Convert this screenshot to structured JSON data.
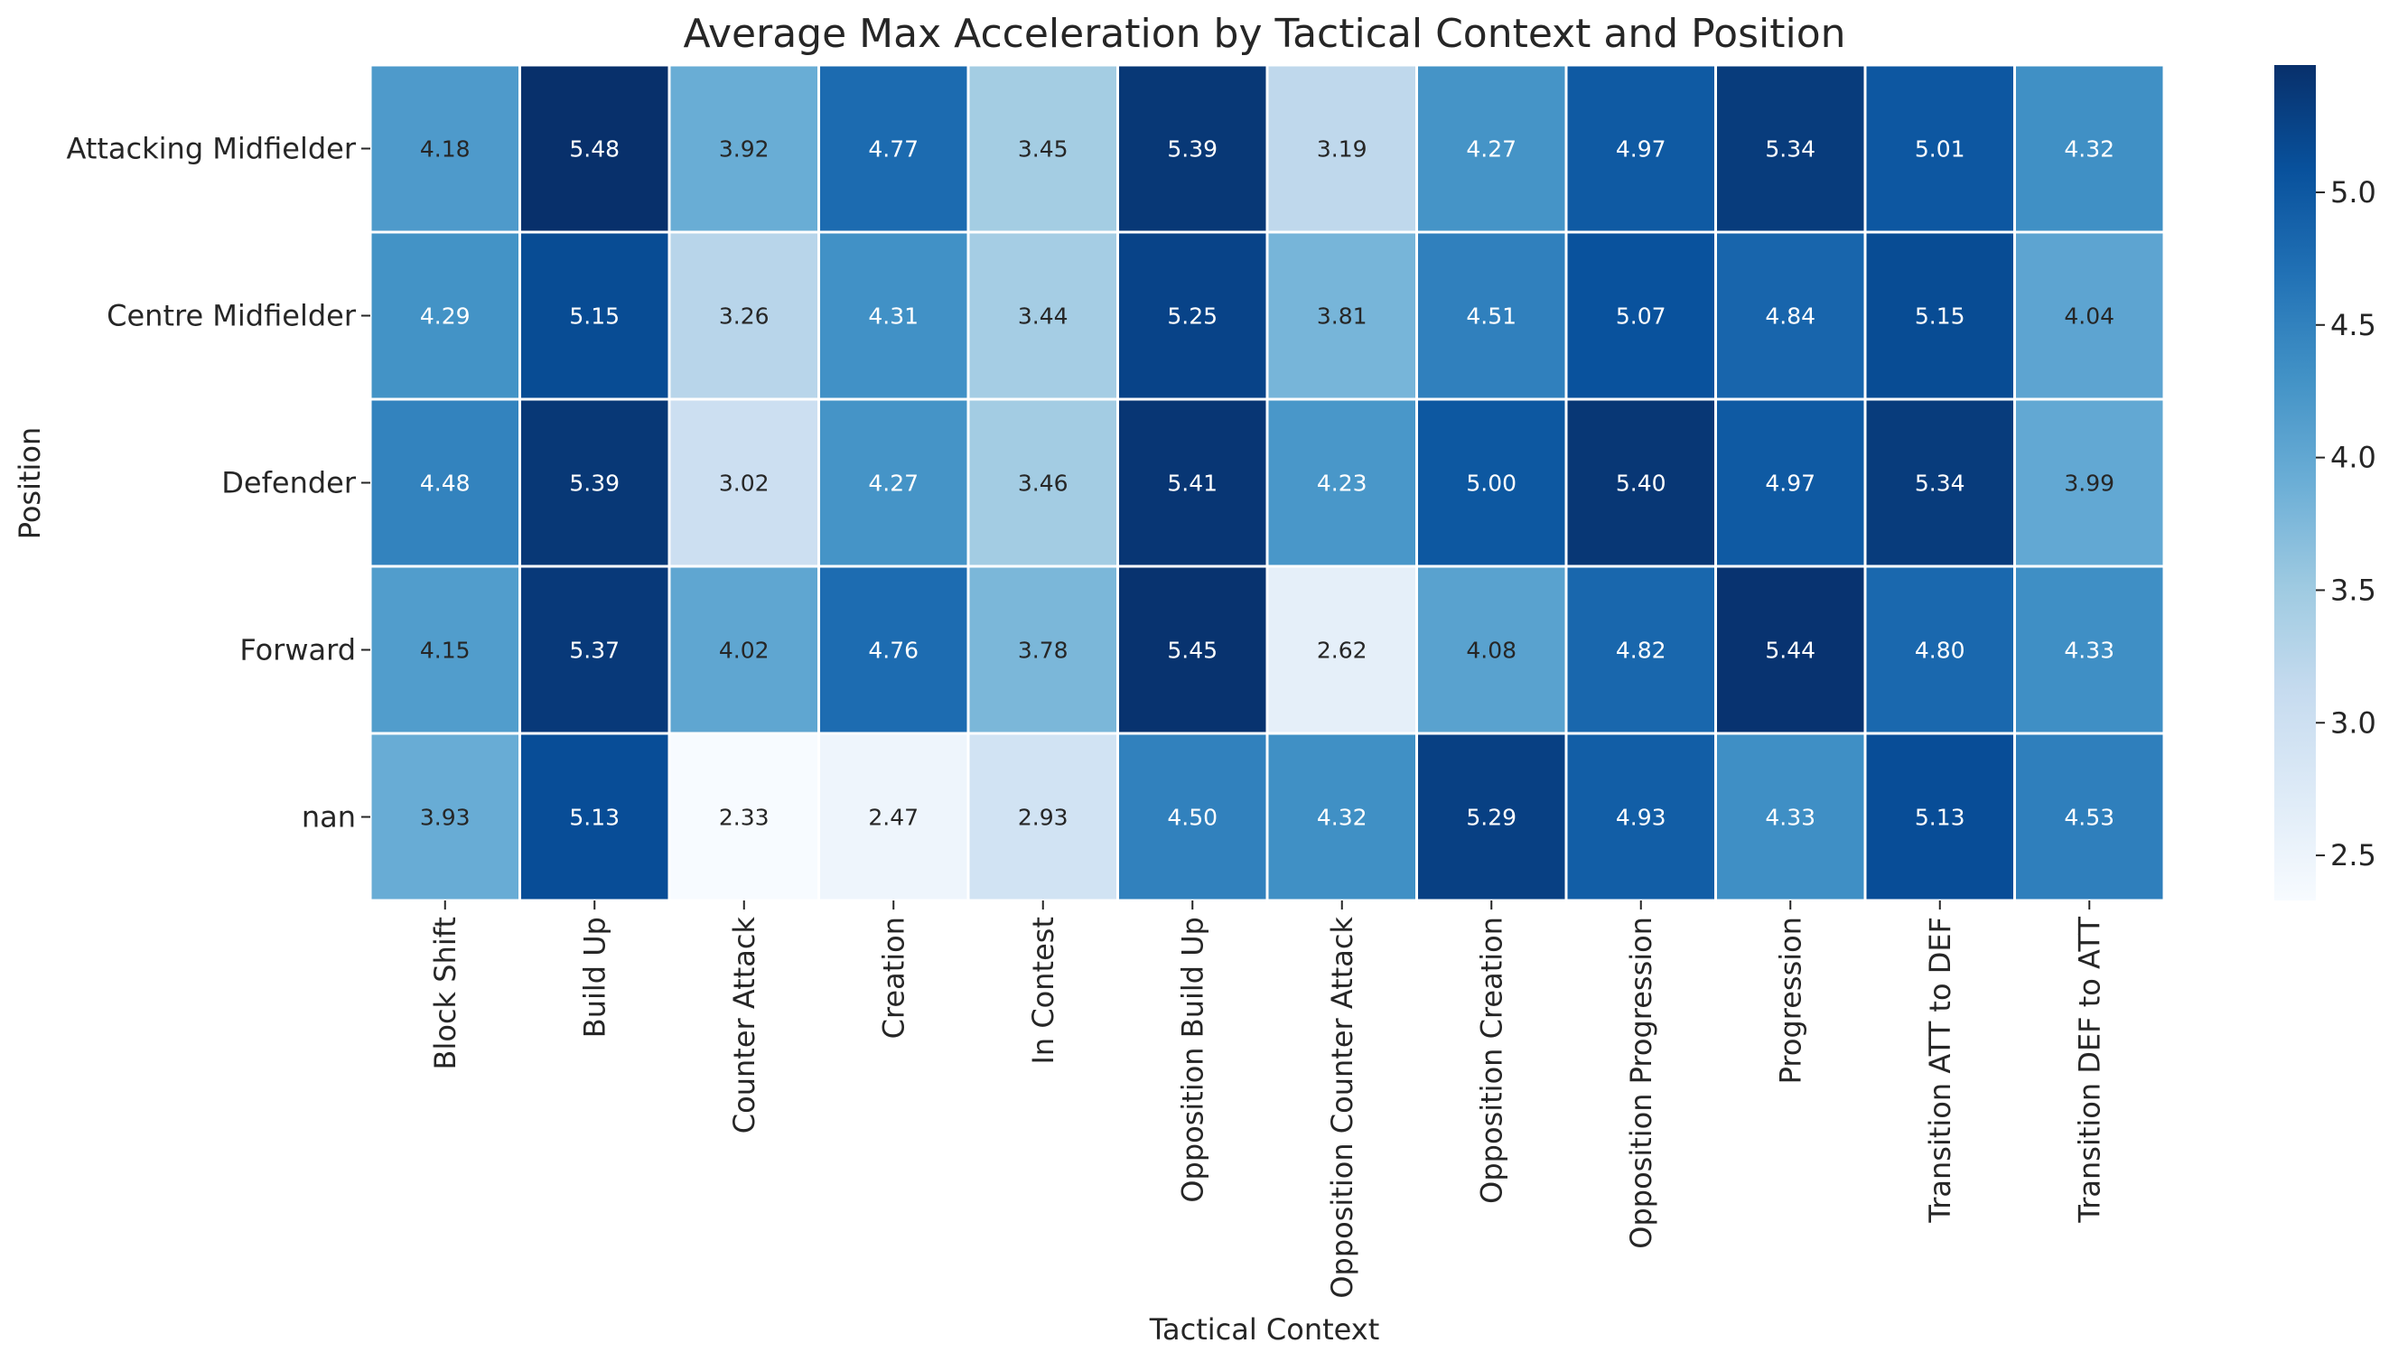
{
  "chart_data": {
    "type": "heatmap",
    "title": "Average Max Acceleration by Tactical Context and Position",
    "xlabel": "Tactical Context",
    "ylabel": "Position",
    "x_categories": [
      "Block Shift",
      "Build Up",
      "Counter Attack",
      "Creation",
      "In Contest",
      "Opposition Build Up",
      "Opposition Counter Attack",
      "Opposition Creation",
      "Opposition Progression",
      "Progression",
      "Transition ATT to DEF",
      "Transition DEF to ATT"
    ],
    "y_categories": [
      "Attacking Midfielder",
      "Centre Midfielder",
      "Defender",
      "Forward",
      "nan"
    ],
    "values": [
      [
        4.18,
        5.48,
        3.92,
        4.77,
        3.45,
        5.39,
        3.19,
        4.27,
        4.97,
        5.34,
        5.01,
        4.32
      ],
      [
        4.29,
        5.15,
        3.26,
        4.31,
        3.44,
        5.25,
        3.81,
        4.51,
        5.07,
        4.84,
        5.15,
        4.04
      ],
      [
        4.48,
        5.39,
        3.02,
        4.27,
        3.46,
        5.41,
        4.23,
        5.0,
        5.4,
        4.97,
        5.34,
        3.99
      ],
      [
        4.15,
        5.37,
        4.02,
        4.76,
        3.78,
        5.45,
        2.62,
        4.08,
        4.82,
        5.44,
        4.8,
        4.33
      ],
      [
        3.93,
        5.13,
        2.33,
        2.47,
        2.93,
        4.5,
        4.32,
        5.29,
        4.93,
        4.33,
        5.13,
        4.53
      ]
    ],
    "colormap": "Blues",
    "vmin": 2.33,
    "vmax": 5.48,
    "colorbar_ticks": [
      "2.5",
      "3.0",
      "3.5",
      "4.0",
      "4.5",
      "5.0"
    ],
    "colorbar_tick_values": [
      2.5,
      3.0,
      3.5,
      4.0,
      4.5,
      5.0
    ],
    "grid": false,
    "cell_separator_color": "#ffffff",
    "annotation_format": "2 decimals"
  }
}
